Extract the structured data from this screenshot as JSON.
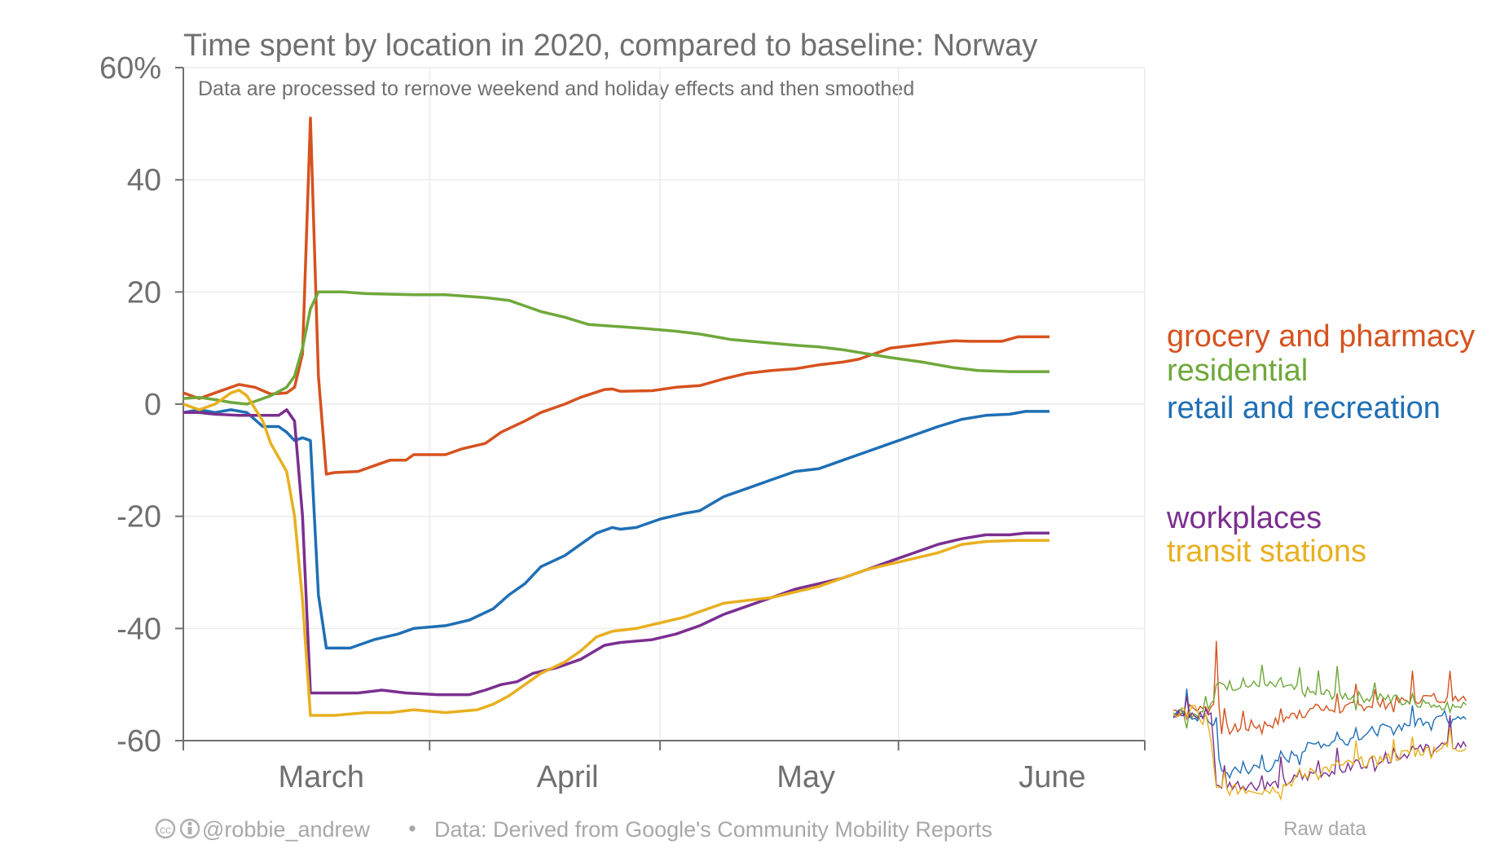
{
  "chart_data": {
    "type": "line",
    "title": "Time spent by location in 2020, compared to baseline: Norway",
    "subtitle": "Data are processed to remove weekend and holiday effects and then smoothed",
    "y_unit_suffix": "%",
    "ylim": [
      -60,
      60
    ],
    "yticks": [
      -60,
      -40,
      -20,
      0,
      20,
      40,
      60
    ],
    "xlim": [
      "2020-02-15",
      "2020-06-15"
    ],
    "month_boundaries": [
      "2020-02-15",
      "2020-03-17",
      "2020-04-15",
      "2020-05-15",
      "2020-06-15"
    ],
    "month_labels": [
      {
        "label": "March",
        "date": "2020-03-01"
      },
      {
        "label": "April",
        "date": "2020-04-01"
      },
      {
        "label": "May",
        "date": "2020-05-01"
      },
      {
        "label": "June",
        "date": "2020-06-01"
      }
    ],
    "grid": true,
    "legend_placement": "right",
    "series": [
      {
        "name": "grocery and pharmacy",
        "color": "#d6521f",
        "points": [
          [
            "2020-02-15",
            2
          ],
          [
            "2020-02-17",
            1
          ],
          [
            "2020-02-19",
            2
          ],
          [
            "2020-02-21",
            3
          ],
          [
            "2020-02-22",
            3.5
          ],
          [
            "2020-02-24",
            3
          ],
          [
            "2020-02-26",
            1.8
          ],
          [
            "2020-02-28",
            2
          ],
          [
            "2020-02-29",
            3
          ],
          [
            "2020-03-01",
            9
          ],
          [
            "2020-03-02",
            51
          ],
          [
            "2020-03-03",
            5
          ],
          [
            "2020-03-04",
            -12.5
          ],
          [
            "2020-03-05",
            -12.2
          ],
          [
            "2020-03-08",
            -12
          ],
          [
            "2020-03-10",
            -11
          ],
          [
            "2020-03-12",
            -10
          ],
          [
            "2020-03-14",
            -10
          ],
          [
            "2020-03-15",
            -9
          ],
          [
            "2020-03-19",
            -9
          ],
          [
            "2020-03-21",
            -8
          ],
          [
            "2020-03-24",
            -7
          ],
          [
            "2020-03-26",
            -5
          ],
          [
            "2020-03-29",
            -3
          ],
          [
            "2020-03-31",
            -1.5
          ],
          [
            "2020-04-03",
            0
          ],
          [
            "2020-04-05",
            1.2
          ],
          [
            "2020-04-08",
            2.6
          ],
          [
            "2020-04-09",
            2.7
          ],
          [
            "2020-04-10",
            2.3
          ],
          [
            "2020-04-14",
            2.4
          ],
          [
            "2020-04-17",
            3
          ],
          [
            "2020-04-20",
            3.3
          ],
          [
            "2020-04-23",
            4.5
          ],
          [
            "2020-04-26",
            5.5
          ],
          [
            "2020-04-29",
            6
          ],
          [
            "2020-05-02",
            6.3
          ],
          [
            "2020-05-05",
            7
          ],
          [
            "2020-05-08",
            7.5
          ],
          [
            "2020-05-10",
            8
          ],
          [
            "2020-05-12",
            9
          ],
          [
            "2020-05-14",
            10
          ],
          [
            "2020-05-17",
            10.5
          ],
          [
            "2020-05-20",
            11
          ],
          [
            "2020-05-22",
            11.3
          ],
          [
            "2020-05-24",
            11.2
          ],
          [
            "2020-05-28",
            11.2
          ],
          [
            "2020-05-30",
            12
          ],
          [
            "2020-06-03",
            12
          ]
        ]
      },
      {
        "name": "residential",
        "color": "#6fa83b",
        "points": [
          [
            "2020-02-15",
            1
          ],
          [
            "2020-02-17",
            1.2
          ],
          [
            "2020-02-19",
            0.8
          ],
          [
            "2020-02-21",
            0.3
          ],
          [
            "2020-02-23",
            0
          ],
          [
            "2020-02-24",
            0.5
          ],
          [
            "2020-02-26",
            1.5
          ],
          [
            "2020-02-28",
            3
          ],
          [
            "2020-02-29",
            5
          ],
          [
            "2020-03-01",
            10
          ],
          [
            "2020-03-02",
            17
          ],
          [
            "2020-03-03",
            20
          ],
          [
            "2020-03-06",
            20
          ],
          [
            "2020-03-09",
            19.7
          ],
          [
            "2020-03-15",
            19.5
          ],
          [
            "2020-03-19",
            19.5
          ],
          [
            "2020-03-24",
            19
          ],
          [
            "2020-03-27",
            18.5
          ],
          [
            "2020-03-29",
            17.5
          ],
          [
            "2020-03-31",
            16.5
          ],
          [
            "2020-04-03",
            15.5
          ],
          [
            "2020-04-06",
            14.2
          ],
          [
            "2020-04-10",
            13.8
          ],
          [
            "2020-04-13",
            13.5
          ],
          [
            "2020-04-17",
            13
          ],
          [
            "2020-04-20",
            12.5
          ],
          [
            "2020-04-24",
            11.5
          ],
          [
            "2020-04-28",
            11
          ],
          [
            "2020-05-02",
            10.5
          ],
          [
            "2020-05-05",
            10.2
          ],
          [
            "2020-05-08",
            9.7
          ],
          [
            "2020-05-11",
            9
          ],
          [
            "2020-05-14",
            8.3
          ],
          [
            "2020-05-18",
            7.5
          ],
          [
            "2020-05-22",
            6.5
          ],
          [
            "2020-05-25",
            6
          ],
          [
            "2020-05-29",
            5.8
          ],
          [
            "2020-06-03",
            5.8
          ]
        ]
      },
      {
        "name": "retail and recreation",
        "color": "#1f6fb4",
        "points": [
          [
            "2020-02-15",
            -1.5
          ],
          [
            "2020-02-17",
            -1
          ],
          [
            "2020-02-19",
            -1.5
          ],
          [
            "2020-02-21",
            -1
          ],
          [
            "2020-02-23",
            -1.5
          ],
          [
            "2020-02-25",
            -4
          ],
          [
            "2020-02-27",
            -4
          ],
          [
            "2020-02-28",
            -5
          ],
          [
            "2020-02-29",
            -6.5
          ],
          [
            "2020-03-01",
            -6
          ],
          [
            "2020-03-02",
            -6.5
          ],
          [
            "2020-03-03",
            -34
          ],
          [
            "2020-03-04",
            -43.5
          ],
          [
            "2020-03-07",
            -43.5
          ],
          [
            "2020-03-10",
            -42
          ],
          [
            "2020-03-13",
            -41
          ],
          [
            "2020-03-15",
            -40
          ],
          [
            "2020-03-19",
            -39.5
          ],
          [
            "2020-03-22",
            -38.5
          ],
          [
            "2020-03-25",
            -36.5
          ],
          [
            "2020-03-27",
            -34
          ],
          [
            "2020-03-29",
            -32
          ],
          [
            "2020-03-31",
            -29
          ],
          [
            "2020-04-03",
            -27
          ],
          [
            "2020-04-05",
            -25
          ],
          [
            "2020-04-07",
            -23
          ],
          [
            "2020-04-09",
            -22
          ],
          [
            "2020-04-10",
            -22.3
          ],
          [
            "2020-04-12",
            -22
          ],
          [
            "2020-04-15",
            -20.5
          ],
          [
            "2020-04-18",
            -19.5
          ],
          [
            "2020-04-20",
            -19
          ],
          [
            "2020-04-23",
            -16.5
          ],
          [
            "2020-04-26",
            -15
          ],
          [
            "2020-04-29",
            -13.5
          ],
          [
            "2020-05-02",
            -12
          ],
          [
            "2020-05-05",
            -11.5
          ],
          [
            "2020-05-08",
            -10
          ],
          [
            "2020-05-11",
            -8.5
          ],
          [
            "2020-05-14",
            -7
          ],
          [
            "2020-05-17",
            -5.5
          ],
          [
            "2020-05-20",
            -4
          ],
          [
            "2020-05-23",
            -2.7
          ],
          [
            "2020-05-26",
            -2
          ],
          [
            "2020-05-29",
            -1.8
          ],
          [
            "2020-05-31",
            -1.3
          ],
          [
            "2020-06-03",
            -1.3
          ]
        ]
      },
      {
        "name": "workplaces",
        "color": "#7b2f8f",
        "points": [
          [
            "2020-02-15",
            -1.5
          ],
          [
            "2020-02-17",
            -1.5
          ],
          [
            "2020-02-19",
            -1.8
          ],
          [
            "2020-02-22",
            -2
          ],
          [
            "2020-02-25",
            -2
          ],
          [
            "2020-02-27",
            -2
          ],
          [
            "2020-02-28",
            -1
          ],
          [
            "2020-02-29",
            -3
          ],
          [
            "2020-03-01",
            -20
          ],
          [
            "2020-03-02",
            -51.5
          ],
          [
            "2020-03-04",
            -51.5
          ],
          [
            "2020-03-08",
            -51.5
          ],
          [
            "2020-03-11",
            -51
          ],
          [
            "2020-03-14",
            -51.5
          ],
          [
            "2020-03-18",
            -51.8
          ],
          [
            "2020-03-22",
            -51.8
          ],
          [
            "2020-03-24",
            -51
          ],
          [
            "2020-03-26",
            -50
          ],
          [
            "2020-03-28",
            -49.5
          ],
          [
            "2020-03-30",
            -48
          ],
          [
            "2020-04-02",
            -47
          ],
          [
            "2020-04-05",
            -45.5
          ],
          [
            "2020-04-08",
            -43
          ],
          [
            "2020-04-10",
            -42.5
          ],
          [
            "2020-04-14",
            -42
          ],
          [
            "2020-04-17",
            -41
          ],
          [
            "2020-04-20",
            -39.5
          ],
          [
            "2020-04-23",
            -37.5
          ],
          [
            "2020-04-26",
            -36
          ],
          [
            "2020-04-29",
            -34.5
          ],
          [
            "2020-05-02",
            -33
          ],
          [
            "2020-05-05",
            -32
          ],
          [
            "2020-05-08",
            -31
          ],
          [
            "2020-05-11",
            -29.5
          ],
          [
            "2020-05-14",
            -28
          ],
          [
            "2020-05-17",
            -26.5
          ],
          [
            "2020-05-20",
            -25
          ],
          [
            "2020-05-23",
            -24
          ],
          [
            "2020-05-26",
            -23.3
          ],
          [
            "2020-05-29",
            -23.3
          ],
          [
            "2020-05-31",
            -23
          ],
          [
            "2020-06-03",
            -23
          ]
        ]
      },
      {
        "name": "transit stations",
        "color": "#e8b020",
        "points": [
          [
            "2020-02-15",
            0
          ],
          [
            "2020-02-17",
            -1
          ],
          [
            "2020-02-19",
            0
          ],
          [
            "2020-02-21",
            2
          ],
          [
            "2020-02-22",
            2.5
          ],
          [
            "2020-02-23",
            1.5
          ],
          [
            "2020-02-25",
            -3
          ],
          [
            "2020-02-26",
            -7
          ],
          [
            "2020-02-28",
            -12
          ],
          [
            "2020-02-29",
            -20
          ],
          [
            "2020-03-01",
            -35
          ],
          [
            "2020-03-02",
            -55.5
          ],
          [
            "2020-03-05",
            -55.5
          ],
          [
            "2020-03-09",
            -55
          ],
          [
            "2020-03-12",
            -55
          ],
          [
            "2020-03-15",
            -54.5
          ],
          [
            "2020-03-19",
            -55
          ],
          [
            "2020-03-23",
            -54.5
          ],
          [
            "2020-03-25",
            -53.5
          ],
          [
            "2020-03-27",
            -52
          ],
          [
            "2020-03-29",
            -50
          ],
          [
            "2020-03-31",
            -48
          ],
          [
            "2020-04-03",
            -46
          ],
          [
            "2020-04-05",
            -44
          ],
          [
            "2020-04-07",
            -41.5
          ],
          [
            "2020-04-09",
            -40.5
          ],
          [
            "2020-04-12",
            -40
          ],
          [
            "2020-04-15",
            -39
          ],
          [
            "2020-04-18",
            -38
          ],
          [
            "2020-04-20",
            -37
          ],
          [
            "2020-04-23",
            -35.5
          ],
          [
            "2020-04-26",
            -35
          ],
          [
            "2020-04-29",
            -34.5
          ],
          [
            "2020-05-02",
            -33.5
          ],
          [
            "2020-05-05",
            -32.5
          ],
          [
            "2020-05-08",
            -31
          ],
          [
            "2020-05-11",
            -29.5
          ],
          [
            "2020-05-14",
            -28.5
          ],
          [
            "2020-05-17",
            -27.5
          ],
          [
            "2020-05-20",
            -26.5
          ],
          [
            "2020-05-23",
            -25
          ],
          [
            "2020-05-26",
            -24.5
          ],
          [
            "2020-05-30",
            -24.3
          ],
          [
            "2020-06-03",
            -24.3
          ]
        ]
      }
    ]
  },
  "footer": {
    "author": "@robbie_andrew",
    "separator": "•",
    "source": "Data: Derived from Google's Community Mobility Reports"
  },
  "raw_data": {
    "caption": "Raw data"
  }
}
